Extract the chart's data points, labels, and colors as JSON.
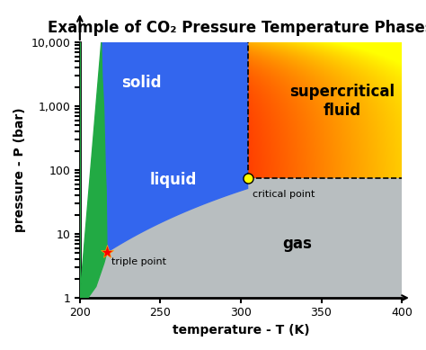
{
  "title": "Example of CO₂ Pressure Temperature Phases",
  "xlabel": "temperature - T (K)",
  "ylabel": "pressure - P (bar)",
  "xmin": 200,
  "xmax": 400,
  "ymin": 1,
  "ymax": 10000,
  "triple_point": [
    216.85,
    5.185
  ],
  "critical_point": [
    304.25,
    73.77
  ],
  "xticks": [
    200,
    250,
    300,
    350,
    400
  ],
  "yticks": [
    1,
    10,
    100,
    1000,
    10000
  ],
  "ytick_labels": [
    "1",
    "10",
    "100",
    "1,000",
    "10,000"
  ],
  "colors": {
    "solid": "#22aa44",
    "liquid": "#3366ee",
    "gas": "#b8bec0",
    "supercritical_top_left": "#ff4400",
    "supercritical_top_right": "#ff8800",
    "supercritical_bot_left": "#ffcc00",
    "supercritical_bot_right": "#ffee00"
  },
  "title_fontsize": 12,
  "label_fontsize": 10,
  "phase_label_fontsize": 12
}
